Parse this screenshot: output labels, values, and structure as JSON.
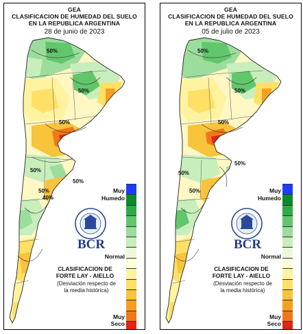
{
  "header": {
    "org": "GEA",
    "title_line1": "CLASIFICACION DE HUMEDAD DEL SUELO",
    "title_line2": "EN LA REPUBLICA ARGENTINA"
  },
  "maps": [
    {
      "date": "28 de junio de 2023",
      "contour_labels": [
        "50%",
        "50%",
        "50%",
        "50%",
        "50%",
        "50%",
        "40%"
      ]
    },
    {
      "date": "05 de julio de 2023",
      "contour_labels": [
        "50%",
        "50%",
        "50%",
        "50%",
        "50%",
        "50%"
      ]
    }
  ],
  "legend": {
    "top_label_1": "Muy",
    "top_label_2": "Humedo",
    "mid_label": "Normal",
    "bottom_label_1": "Muy",
    "bottom_label_2": "Seco",
    "colors": [
      "#1e3cff",
      "#0b8a2a",
      "#2eab46",
      "#62c66c",
      "#9cdc9c",
      "#c8eebc",
      "#eef7dc",
      "#ffffd8",
      "#fff3a0",
      "#ffe066",
      "#f8c43c",
      "#f5a020",
      "#f07818",
      "#e02810"
    ]
  },
  "brand": {
    "logo_text": "BCR",
    "seal_text": "BOLSA DE COMERCIO DE ROSARIO",
    "classification_line1": "CLASIFICACION DE",
    "classification_line2": "FORTE LAY - AIELLO",
    "description_line1": "(Desviación respecto de",
    "description_line2": "la media histórica)"
  }
}
